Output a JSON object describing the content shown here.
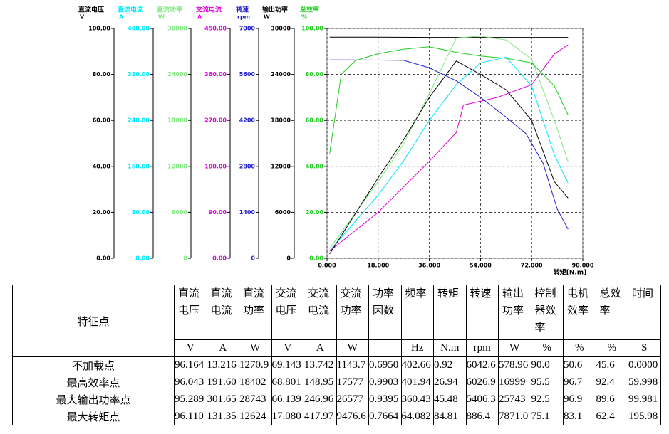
{
  "chart_data": {
    "type": "line",
    "axes": [
      {
        "name": "直流电压",
        "unit": "V",
        "color": "#000000",
        "ylim": [
          0,
          100
        ],
        "yticks": [
          {
            "value": 0,
            "label": "0.00"
          },
          {
            "value": 20,
            "label": "20.00"
          },
          {
            "value": 40,
            "label": "40.00"
          },
          {
            "value": 60,
            "label": "60.00"
          },
          {
            "value": 80,
            "label": "80.00"
          },
          {
            "value": 100,
            "label": "100.00"
          }
        ]
      },
      {
        "name": "直流电流",
        "unit": "A",
        "color": "#00e5ff",
        "ylim": [
          0,
          400
        ],
        "yticks": [
          {
            "value": 0,
            "label": "0.00"
          },
          {
            "value": 80,
            "label": "80.00"
          },
          {
            "value": 160,
            "label": "160.00"
          },
          {
            "value": 240,
            "label": "240.00"
          },
          {
            "value": 320,
            "label": "320.00"
          },
          {
            "value": 400,
            "label": "400.00"
          }
        ]
      },
      {
        "name": "直流功率",
        "unit": "W",
        "color": "#7fe87f",
        "ylim": [
          0,
          30000
        ],
        "yticks": [
          0,
          6000,
          12000,
          18000,
          24000,
          30000
        ]
      },
      {
        "name": "交流电流",
        "unit": "A",
        "color": "#e000e0",
        "ylim": [
          0,
          450
        ],
        "yticks": [
          {
            "value": 0,
            "label": "0.00"
          },
          {
            "value": 90,
            "label": "90.00"
          },
          {
            "value": 180,
            "label": "180.00"
          },
          {
            "value": 270,
            "label": "270.00"
          },
          {
            "value": 360,
            "label": "360.00"
          },
          {
            "value": 450,
            "label": "450.00"
          }
        ]
      },
      {
        "name": "转速",
        "unit": "rpm",
        "color": "#2020d0",
        "ylim": [
          0,
          7000
        ],
        "yticks": [
          0,
          1400,
          2800,
          4200,
          5600,
          7000
        ]
      },
      {
        "name": "输出功率",
        "unit": "W",
        "color": "#000000",
        "ylim": [
          0,
          30000
        ],
        "yticks": [
          0,
          6000,
          12000,
          18000,
          24000,
          30000
        ]
      },
      {
        "name": "总效率",
        "unit": "%",
        "color": "#22cc22",
        "ylim": [
          0,
          100
        ],
        "yticks": [
          {
            "value": 0,
            "label": "0.00"
          },
          {
            "value": 20,
            "label": "20.00"
          },
          {
            "value": 40,
            "label": "40.00"
          },
          {
            "value": 60,
            "label": "60.00"
          },
          {
            "value": 80,
            "label": "80.00"
          },
          {
            "value": 100,
            "label": "100.00"
          }
        ]
      }
    ],
    "xlabel": "转矩[N.m]",
    "xlim": [
      0,
      90
    ],
    "xticks": [
      {
        "value": 0,
        "label": "0.000"
      },
      {
        "value": 18,
        "label": "18.000"
      },
      {
        "value": 36,
        "label": "36.000"
      },
      {
        "value": 54,
        "label": "54.000"
      },
      {
        "value": 72,
        "label": "72.000"
      },
      {
        "value": 90,
        "label": "90.000"
      }
    ],
    "grid": true,
    "series": [
      {
        "axis": 0,
        "x": [
          0.92,
          18,
          36,
          54,
          72,
          84.81
        ],
        "values": [
          96.2,
          96.2,
          96.1,
          96.1,
          96.1,
          96.1
        ]
      },
      {
        "axis": 1,
        "x": [
          0.92,
          18,
          27,
          36,
          45.48,
          54,
          63,
          72,
          80,
          84.81
        ],
        "values": [
          13,
          110,
          170,
          240,
          302,
          340,
          350,
          300,
          180,
          131
        ]
      },
      {
        "axis": 2,
        "x": [
          0.92,
          18,
          27,
          36,
          45.48,
          54,
          63,
          72,
          80,
          84.81
        ],
        "values": [
          1271,
          10000,
          15000,
          21500,
          28743,
          29000,
          28500,
          26000,
          18000,
          12624
        ]
      },
      {
        "axis": 3,
        "x": [
          0.92,
          18,
          27,
          36,
          45.48,
          48,
          60,
          72,
          80,
          84.81
        ],
        "values": [
          14,
          90,
          140,
          190,
          246,
          300,
          315,
          340,
          400,
          418
        ]
      },
      {
        "axis": 4,
        "x": [
          0.92,
          9,
          18,
          27,
          36,
          45.48,
          54,
          63,
          70,
          76,
          81,
          84.81
        ],
        "values": [
          6040,
          6040,
          6035,
          6027,
          5800,
          5406,
          4900,
          4300,
          3800,
          2900,
          1500,
          886
        ]
      },
      {
        "axis": 5,
        "x": [
          0.92,
          18,
          27,
          36,
          45.48,
          54,
          63,
          72,
          80,
          84.81
        ],
        "values": [
          579,
          10500,
          15500,
          21000,
          25743,
          24000,
          22000,
          18000,
          10000,
          7871
        ]
      },
      {
        "axis": 6,
        "x": [
          0.92,
          5,
          10,
          18,
          27,
          36,
          45.48,
          54,
          63,
          72,
          80,
          84.81
        ],
        "values": [
          45.6,
          80,
          86,
          89,
          91,
          92,
          89.6,
          88,
          87,
          85,
          75,
          62.4
        ]
      }
    ]
  },
  "table": {
    "corner": "特征点",
    "headers": [
      "直流电压",
      "直流电流",
      "直流功率",
      "交流电压",
      "交流电流",
      "交流功率",
      "功率因数",
      "频率",
      "转矩",
      "转速",
      "输出功率",
      "控制器效率",
      "电机效率",
      "总效率",
      "时间"
    ],
    "units": [
      "V",
      "A",
      "W",
      "V",
      "A",
      "W",
      null,
      "Hz",
      "N.m",
      "rpm",
      "W",
      "%",
      "%",
      "%",
      "S"
    ],
    "rows": [
      [
        "不加载点",
        "96.164",
        "13.216",
        "1270.9",
        "69.143",
        "13.742",
        "1143.7",
        "0.6950",
        "402.66",
        "0.92",
        "6042.6",
        "578.96",
        "90.0",
        "50.6",
        "45.6",
        "0.0000"
      ],
      [
        "最高效率点",
        "96.043",
        "191.60",
        "18402",
        "68.801",
        "148.95",
        "17577",
        "0.9903",
        "401.94",
        "26.94",
        "6026.9",
        "16999",
        "95.5",
        "96.7",
        "92.4",
        "59.998"
      ],
      [
        "最大输出功率点",
        "95.289",
        "301.65",
        "28743",
        "66.139",
        "246.96",
        "26577",
        "0.9395",
        "360.43",
        "45.48",
        "5406.3",
        "25743",
        "92.5",
        "96.9",
        "89.6",
        "99.981"
      ],
      [
        "最大转矩点",
        "96.110",
        "131.35",
        "12624",
        "17.080",
        "417.97",
        "9476.6",
        "0.7664",
        "64.082",
        "84.81",
        "886.4",
        "7871.0",
        "75.1",
        "83.1",
        "62.4",
        "195.98"
      ]
    ]
  }
}
